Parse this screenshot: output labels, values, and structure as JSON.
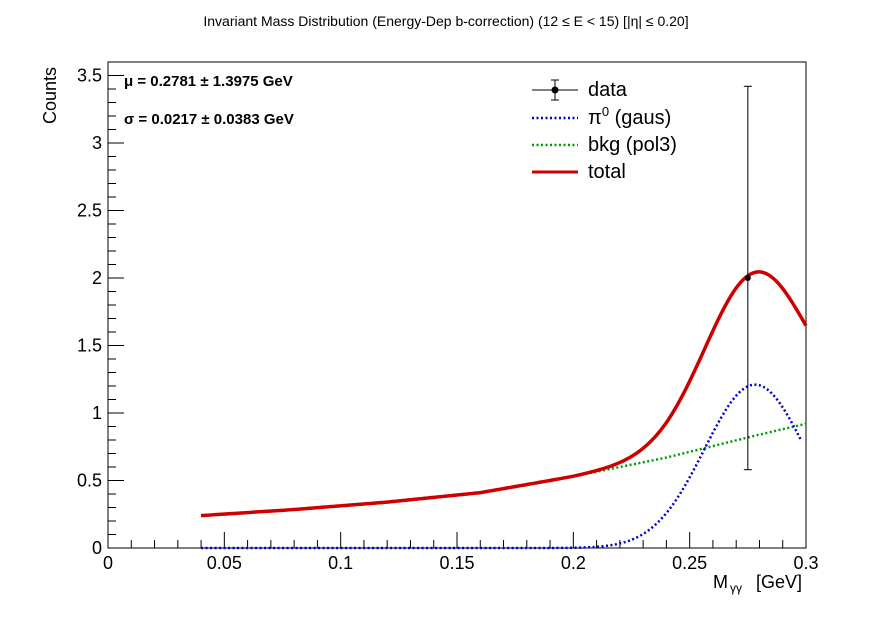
{
  "chart_data": {
    "type": "line",
    "title": "Invariant Mass Distribution (Energy-Dep b-correction)   (12      ≤ E < 15)   [|η| ≤ 0.20]",
    "xlabel_main": "M",
    "xlabel_sub": "γγ",
    "xlabel_unit": "[GeV]",
    "ylabel": "Counts",
    "xlim": [
      0,
      0.3
    ],
    "ylim": [
      0,
      3.6
    ],
    "xticks": [
      0,
      0.05,
      0.1,
      0.15,
      0.2,
      0.25,
      0.3
    ],
    "xtick_labels": [
      "0",
      "0.05",
      "0.1",
      "0.15",
      "0.2",
      "0.25",
      "0.3"
    ],
    "yticks": [
      0,
      0.5,
      1,
      1.5,
      2,
      2.5,
      3,
      3.5
    ],
    "ytick_labels": [
      "0",
      "0.5",
      "1",
      "1.5",
      "2",
      "2.5",
      "3",
      "3.5"
    ],
    "fit_params": {
      "mu_label": "μ = 0.2781 ± 1.3975 GeV",
      "sigma_label": "σ = 0.0217  ± 0.0383 GeV",
      "mu": 0.2781,
      "sigma": 0.0217,
      "amplitude": 1.21
    },
    "data_points": [
      {
        "x": 0.275,
        "y": 2.0,
        "yerr_low": 1.42,
        "yerr_high": 1.42
      }
    ],
    "bkg_points": {
      "x": [
        0.04,
        0.08,
        0.12,
        0.16,
        0.2,
        0.24,
        0.28,
        0.3
      ],
      "y": [
        0.24,
        0.285,
        0.34,
        0.41,
        0.53,
        0.67,
        0.84,
        0.92
      ]
    },
    "series": [
      {
        "name": "data",
        "style": "marker",
        "color": "#000000"
      },
      {
        "name": "π⁰ (gaus)",
        "style": "dotted",
        "color": "#0000cc"
      },
      {
        "name": "bkg (pol3)",
        "style": "dotted",
        "color": "#009900"
      },
      {
        "name": "total",
        "style": "solid",
        "color": "#cc0000"
      }
    ],
    "legend": {
      "position": "top-right",
      "labels": [
        "data",
        "π",
        "0",
        " (gaus)",
        "bkg (pol3)",
        "total"
      ]
    },
    "grid": false
  }
}
